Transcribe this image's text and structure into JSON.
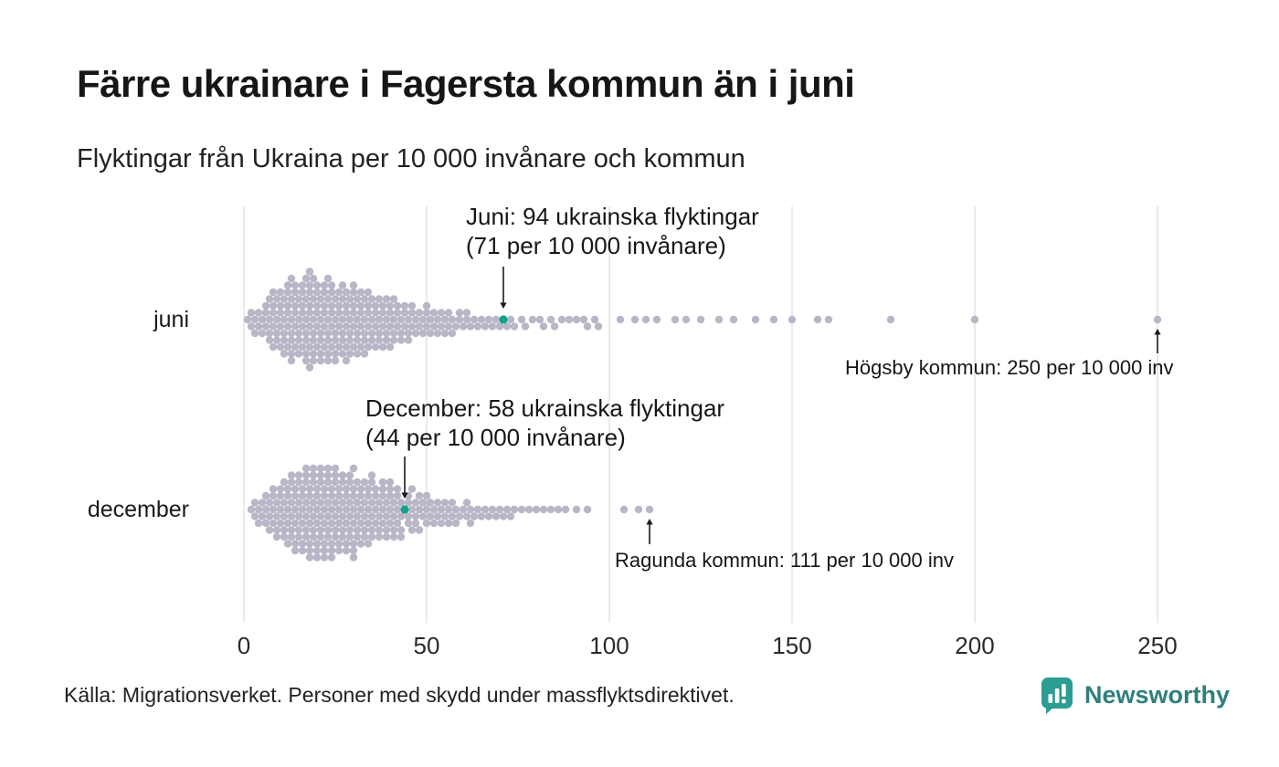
{
  "title": "Färre ukrainare i Fagersta kommun än i juni",
  "subtitle": "Flyktingar från Ukraina per 10 000 invånare och kommun",
  "source": "Källa: Migrationsverket. Personer med skydd under massflyktsdirektivet.",
  "logo": {
    "text": "Newsworthy",
    "icon": "bar-chart-logo-icon"
  },
  "colors": {
    "dot": "#b9b6c7",
    "highlight": "#12a28d",
    "gridline": "#d6d6d6",
    "axis_text": "#2a2a2a",
    "annotation_text": "#161616",
    "arrow": "#1a1a1a",
    "logo_square": "#2b9d92",
    "logo_text": "#2f807d"
  },
  "chart_data": {
    "type": "scatter",
    "variant": "beeswarm",
    "title": "Färre ukrainare i Fagersta kommun än i juni",
    "subtitle": "Flyktingar från Ukraina per 10 000 invånare och kommun",
    "xlabel": "",
    "ylabel": "",
    "xlim": [
      0,
      250
    ],
    "x_ticks": [
      0,
      50,
      100,
      150,
      200,
      250
    ],
    "grid": "vertical",
    "rows": [
      {
        "label": "juni",
        "highlight": {
          "value": 71
        },
        "values": [
          1,
          2,
          2,
          3,
          3,
          4,
          4,
          5,
          5,
          6,
          6,
          6,
          7,
          7,
          7,
          7,
          8,
          8,
          8,
          8,
          8,
          9,
          9,
          9,
          9,
          10,
          10,
          10,
          10,
          10,
          11,
          11,
          11,
          11,
          11,
          12,
          12,
          12,
          12,
          12,
          12,
          13,
          13,
          13,
          13,
          13,
          13,
          13,
          14,
          14,
          14,
          14,
          14,
          14,
          15,
          15,
          15,
          15,
          15,
          16,
          16,
          16,
          16,
          16,
          16,
          17,
          17,
          17,
          17,
          17,
          17,
          17,
          18,
          18,
          18,
          18,
          18,
          18,
          18,
          18,
          19,
          19,
          19,
          19,
          19,
          19,
          19,
          20,
          20,
          20,
          20,
          20,
          20,
          21,
          21,
          21,
          21,
          21,
          21,
          22,
          22,
          22,
          22,
          22,
          22,
          23,
          23,
          23,
          23,
          23,
          23,
          23,
          24,
          24,
          24,
          24,
          24,
          24,
          25,
          25,
          25,
          25,
          25,
          25,
          26,
          26,
          26,
          26,
          26,
          27,
          27,
          27,
          27,
          27,
          27,
          28,
          28,
          28,
          28,
          28,
          28,
          29,
          29,
          29,
          29,
          29,
          30,
          30,
          30,
          30,
          30,
          30,
          31,
          31,
          31,
          31,
          31,
          32,
          32,
          32,
          32,
          32,
          33,
          33,
          33,
          33,
          33,
          34,
          34,
          34,
          34,
          34,
          35,
          35,
          35,
          35,
          36,
          36,
          36,
          36,
          37,
          37,
          37,
          37,
          38,
          38,
          38,
          38,
          39,
          39,
          39,
          39,
          40,
          40,
          40,
          40,
          41,
          41,
          41,
          41,
          42,
          42,
          42,
          43,
          43,
          43,
          44,
          44,
          44,
          45,
          45,
          45,
          46,
          46,
          46,
          47,
          47,
          48,
          48,
          49,
          49,
          50,
          50,
          50,
          51,
          51,
          52,
          52,
          53,
          53,
          54,
          54,
          55,
          55,
          56,
          56,
          57,
          57,
          58,
          59,
          59,
          60,
          61,
          61,
          62,
          63,
          64,
          65,
          66,
          67,
          68,
          69,
          70,
          71,
          72,
          73,
          74,
          76,
          77,
          79,
          81,
          82,
          84,
          85,
          87,
          89,
          91,
          93,
          94,
          96,
          97,
          103,
          107,
          110,
          113,
          118,
          121,
          125,
          130,
          134,
          140,
          145,
          150,
          157,
          160,
          177,
          200,
          250
        ]
      },
      {
        "label": "december",
        "highlight": {
          "value": 44
        },
        "values": [
          2,
          3,
          3,
          4,
          4,
          5,
          5,
          6,
          6,
          6,
          7,
          7,
          7,
          8,
          8,
          8,
          8,
          9,
          9,
          9,
          9,
          10,
          10,
          10,
          10,
          11,
          11,
          11,
          11,
          11,
          12,
          12,
          12,
          12,
          12,
          13,
          13,
          13,
          13,
          13,
          13,
          14,
          14,
          14,
          14,
          14,
          14,
          15,
          15,
          15,
          15,
          15,
          15,
          16,
          16,
          16,
          16,
          16,
          16,
          17,
          17,
          17,
          17,
          17,
          17,
          17,
          18,
          18,
          18,
          18,
          18,
          18,
          18,
          19,
          19,
          19,
          19,
          19,
          19,
          19,
          20,
          20,
          20,
          20,
          20,
          20,
          20,
          21,
          21,
          21,
          21,
          21,
          21,
          21,
          22,
          22,
          22,
          22,
          22,
          22,
          22,
          23,
          23,
          23,
          23,
          23,
          23,
          23,
          24,
          24,
          24,
          24,
          24,
          24,
          24,
          25,
          25,
          25,
          25,
          25,
          25,
          25,
          26,
          26,
          26,
          26,
          26,
          26,
          27,
          27,
          27,
          27,
          27,
          27,
          28,
          28,
          28,
          28,
          28,
          28,
          29,
          29,
          29,
          29,
          29,
          29,
          30,
          30,
          30,
          30,
          30,
          30,
          30,
          30,
          31,
          31,
          31,
          31,
          31,
          32,
          32,
          32,
          32,
          32,
          33,
          33,
          33,
          33,
          33,
          34,
          34,
          34,
          34,
          34,
          35,
          35,
          35,
          35,
          35,
          35,
          36,
          36,
          36,
          36,
          37,
          37,
          37,
          37,
          38,
          38,
          38,
          38,
          38,
          39,
          39,
          39,
          39,
          40,
          40,
          40,
          40,
          40,
          41,
          41,
          41,
          41,
          42,
          42,
          42,
          42,
          43,
          43,
          43,
          43,
          44,
          45,
          45,
          45,
          45,
          46,
          46,
          46,
          47,
          47,
          47,
          48,
          48,
          48,
          49,
          49,
          50,
          50,
          50,
          51,
          51,
          52,
          52,
          53,
          53,
          54,
          54,
          55,
          55,
          56,
          56,
          57,
          57,
          58,
          58,
          59,
          60,
          61,
          61,
          62,
          62,
          63,
          64,
          65,
          66,
          67,
          68,
          69,
          70,
          71,
          72,
          73,
          74,
          76,
          78,
          80,
          82,
          84,
          86,
          88,
          91,
          94,
          104,
          108,
          111
        ]
      }
    ],
    "annotations": [
      {
        "id": "juni-highlight",
        "row": 0,
        "value": 71,
        "arrow": "down",
        "lines": [
          "Juni: 94 ukrainska flyktingar",
          "(71 per 10 000 invånare)"
        ]
      },
      {
        "id": "juni-max",
        "row": 0,
        "value": 250,
        "arrow": "up",
        "lines": [
          "Högsby kommun: 250 per 10 000 inv"
        ]
      },
      {
        "id": "december-highlight",
        "row": 1,
        "value": 44,
        "arrow": "down",
        "lines": [
          "December: 58 ukrainska flyktingar",
          "(44 per 10 000 invånare)"
        ]
      },
      {
        "id": "december-max",
        "row": 1,
        "value": 111,
        "arrow": "up",
        "lines": [
          "Ragunda kommun: 111 per 10 000 inv"
        ]
      }
    ]
  }
}
